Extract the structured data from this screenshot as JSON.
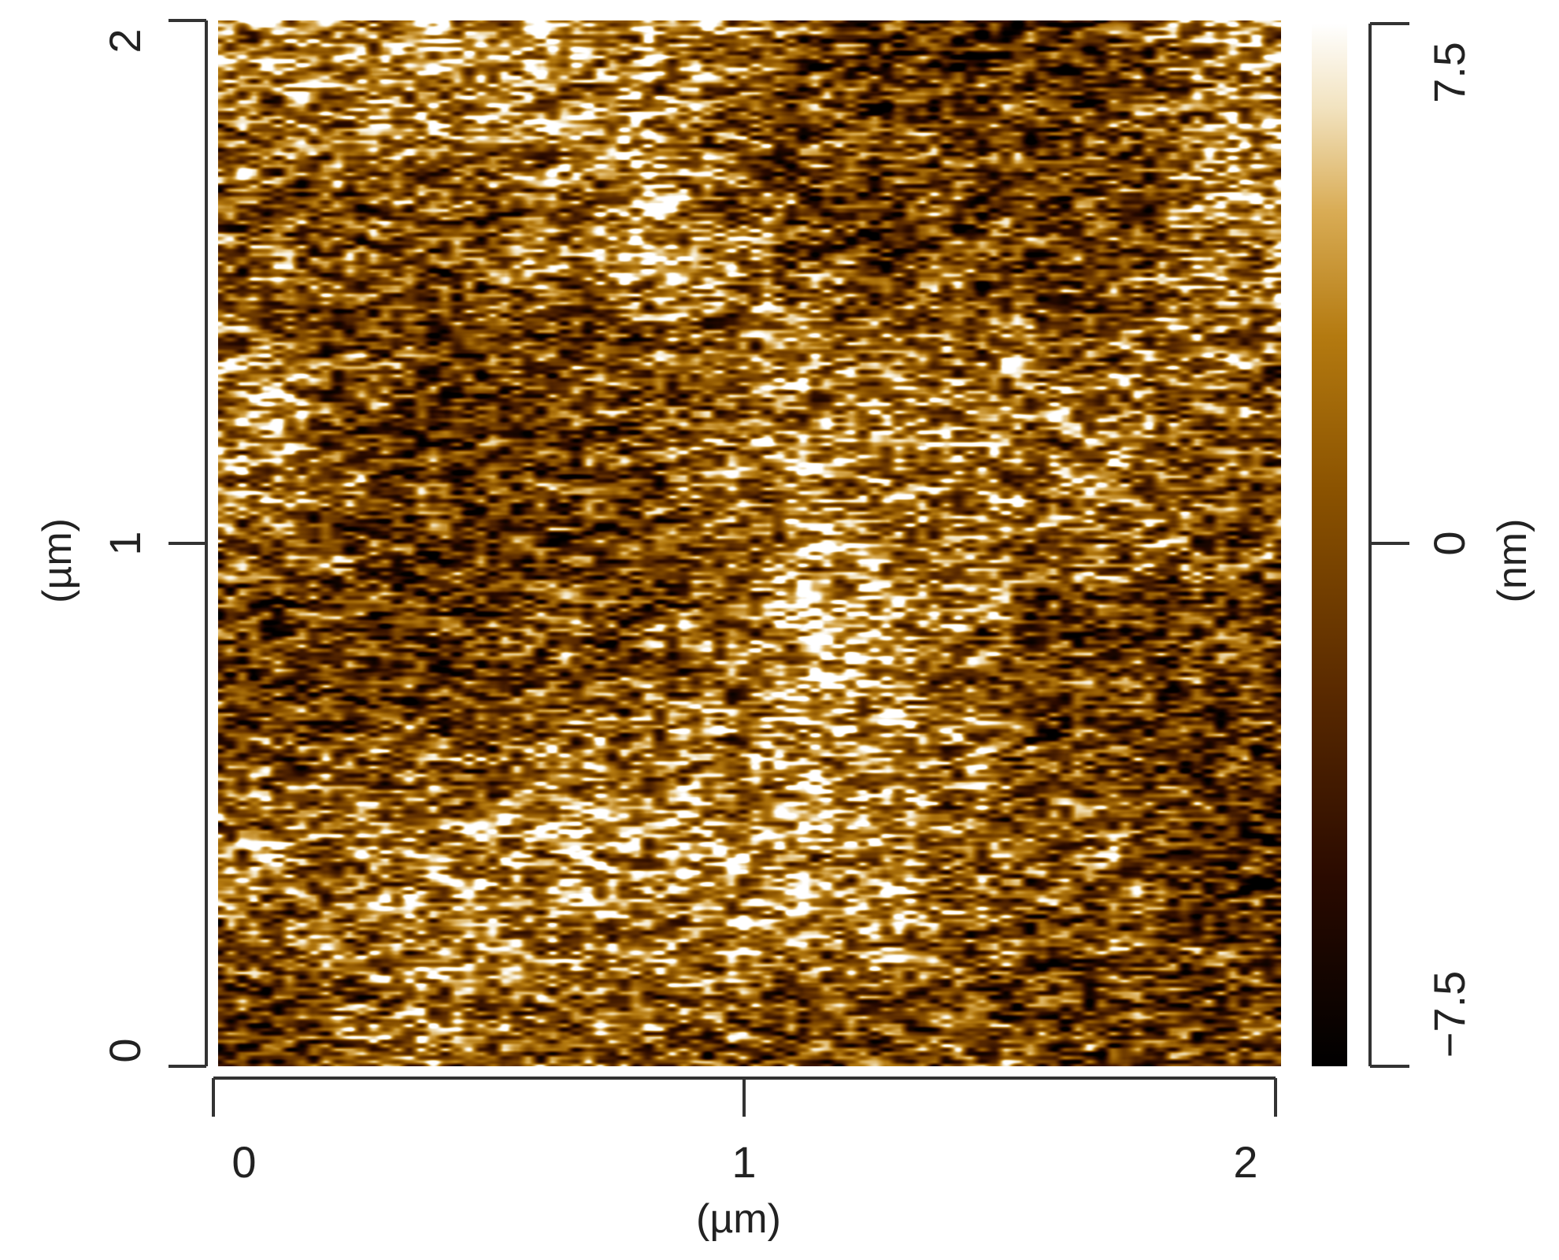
{
  "figure": {
    "type": "afm-height-map",
    "colormap": [
      "#000000",
      "#2a0a00",
      "#5a2a00",
      "#8a5200",
      "#b47a10",
      "#d9ac55",
      "#f2e3c0",
      "#ffffff"
    ],
    "x_axis": {
      "unit": "(µm)",
      "ticks": [
        "0",
        "1",
        "2"
      ],
      "range": [
        0,
        2
      ]
    },
    "y_axis": {
      "unit": "(µm)",
      "ticks": [
        "0",
        "1",
        "2"
      ],
      "range": [
        0,
        2
      ]
    },
    "colorbar": {
      "unit": "(nm)",
      "ticks": [
        "−7.5",
        "0",
        "7.5"
      ],
      "range": [
        -7.5,
        7.5
      ]
    }
  }
}
